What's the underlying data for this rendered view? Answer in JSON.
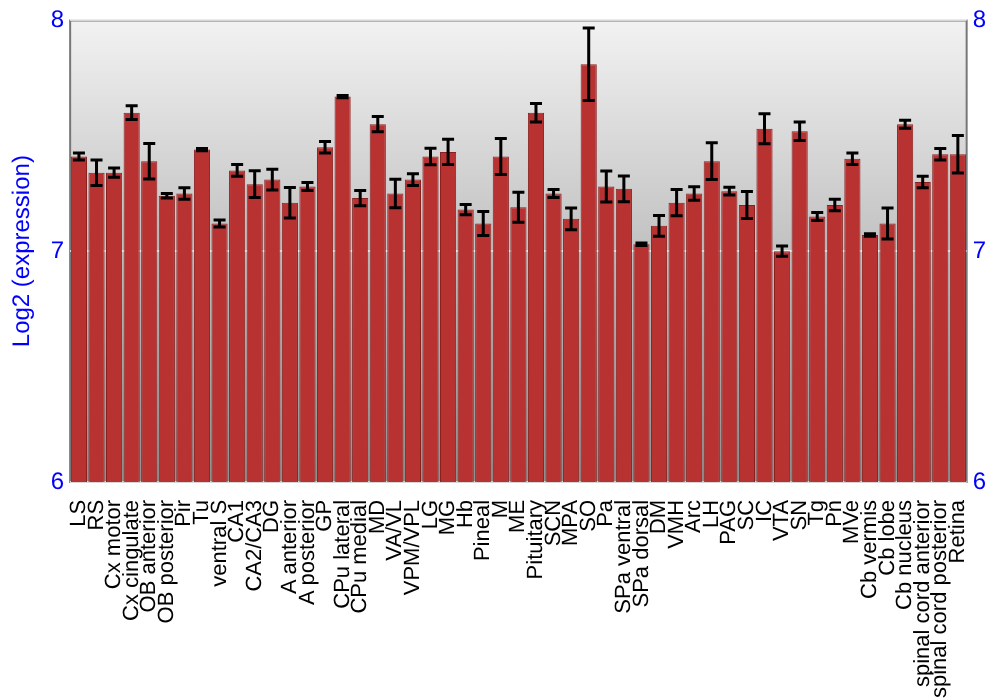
{
  "chart_data": {
    "type": "bar",
    "ylabel": "Log2 (expression)",
    "categories": [
      "LS",
      "RS",
      "Cx motor",
      "Cx cingulate",
      "OB anterior",
      "OB posterior",
      "Pir",
      "Tu",
      "ventral S",
      "CA1",
      "CA2/CA3",
      "DG",
      "A anterior",
      "A posterior",
      "GP",
      "CPu lateral",
      "CPu medial",
      "MD",
      "VA/VL",
      "VPM/VPL",
      "LG",
      "MG",
      "Hb",
      "Pineal",
      "M",
      "ME",
      "Pituitary",
      "SCN",
      "MPA",
      "SO",
      "Pa",
      "SPa ventral",
      "SPa dorsal",
      "DM",
      "VMH",
      "Arc",
      "LH",
      "PAG",
      "SC",
      "IC",
      "VTA",
      "SN",
      "Tg",
      "Pn",
      "MVe",
      "Cb vermis",
      "Cb lobe",
      "Cb nucleus",
      "spinal cord anterior",
      "spinal cord posterior",
      "Retina"
    ],
    "values": [
      7.41,
      7.34,
      7.34,
      7.6,
      7.39,
      7.24,
      7.25,
      7.44,
      7.12,
      7.35,
      7.29,
      7.31,
      7.21,
      7.28,
      7.45,
      7.67,
      7.23,
      7.55,
      7.25,
      7.31,
      7.41,
      7.43,
      7.18,
      7.12,
      7.41,
      7.19,
      7.6,
      7.25,
      7.14,
      7.81,
      7.28,
      7.27,
      7.03,
      7.11,
      7.21,
      7.25,
      7.39,
      7.26,
      7.2,
      7.53,
      7.0,
      7.52,
      7.15,
      7.2,
      7.4,
      7.07,
      7.12,
      7.55,
      7.3,
      7.42,
      7.42
    ],
    "errors": [
      0.015,
      0.055,
      0.02,
      0.03,
      0.077,
      0.01,
      0.025,
      0.005,
      0.015,
      0.025,
      0.058,
      0.045,
      0.066,
      0.017,
      0.025,
      0.005,
      0.033,
      0.033,
      0.062,
      0.025,
      0.036,
      0.055,
      0.022,
      0.052,
      0.078,
      0.065,
      0.04,
      0.017,
      0.047,
      0.157,
      0.067,
      0.056,
      0.005,
      0.045,
      0.057,
      0.029,
      0.08,
      0.017,
      0.058,
      0.065,
      0.022,
      0.04,
      0.017,
      0.025,
      0.025,
      0.005,
      0.067,
      0.017,
      0.025,
      0.025,
      0.081
    ],
    "color": "#b83232",
    "ylim": [
      6,
      8
    ],
    "yticks": [
      6,
      7,
      8
    ],
    "y2lim": [
      6,
      8
    ],
    "y2ticks": [
      6,
      7,
      8
    ],
    "grid": "y",
    "legend": false
  }
}
